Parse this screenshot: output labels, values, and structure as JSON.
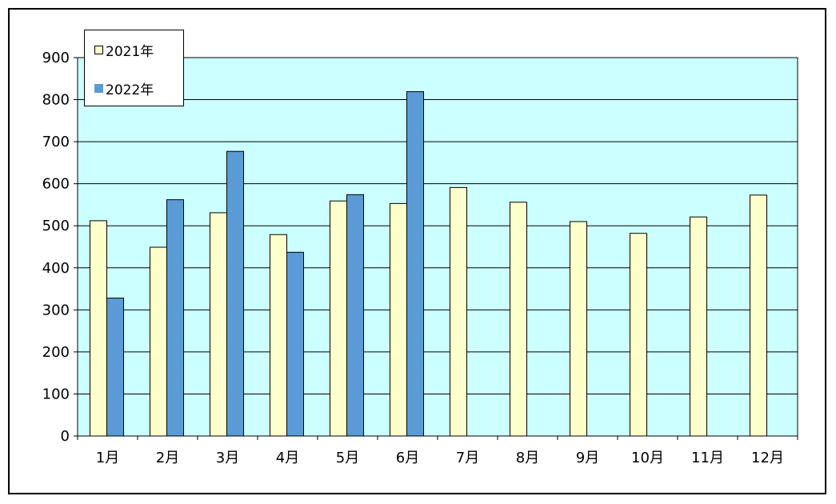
{
  "chart_data": {
    "type": "bar",
    "categories": [
      "1月",
      "2月",
      "3月",
      "4月",
      "5月",
      "6月",
      "7月",
      "8月",
      "9月",
      "10月",
      "11月",
      "12月"
    ],
    "series": [
      {
        "name": "2021年",
        "color": "#ffffcc",
        "values": [
          512,
          449,
          531,
          479,
          559,
          553,
          591,
          556,
          510,
          482,
          521,
          573
        ]
      },
      {
        "name": "2022年",
        "color": "#5b9bd5",
        "values": [
          328,
          562,
          677,
          437,
          574,
          819,
          null,
          null,
          null,
          null,
          null,
          null
        ]
      }
    ],
    "yticks": [
      "0",
      "100",
      "200",
      "300",
      "400",
      "500",
      "600",
      "700",
      "800",
      "900"
    ],
    "ylim": [
      0,
      900
    ],
    "grid": true,
    "plot_background": "#ccffff",
    "legend_position": "top-left"
  }
}
